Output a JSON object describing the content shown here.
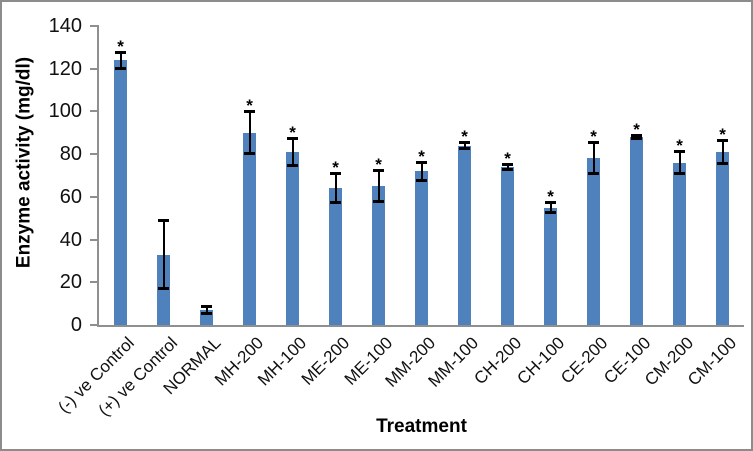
{
  "window": {
    "background": "#ffffff",
    "border_color": "#8c8c8c"
  },
  "chart_data": {
    "type": "bar",
    "title": "",
    "xlabel": "Treatment",
    "ylabel": "Enzyme activity (mg/dl)",
    "ylim": [
      0,
      140
    ],
    "yticks": [
      0,
      20,
      40,
      60,
      80,
      100,
      120,
      140
    ],
    "grid": false,
    "legend": false,
    "bar_color": "#4F81BD",
    "error_bar_color": "#000000",
    "axis_line_color": "#8f8f8f",
    "significance_marker": "*",
    "categories": [
      "(-) ve Control",
      "(+) ve Control",
      "NORMAL",
      "MH-200",
      "MH-100",
      "ME-200",
      "ME-100",
      "MM-200",
      "MM-100",
      "CH-200",
      "CH-100",
      "CE-200",
      "CE-100",
      "CM-200",
      "CM-100"
    ],
    "values": [
      124,
      33,
      7,
      90,
      81,
      64,
      65,
      72,
      84,
      74,
      55,
      78,
      88,
      76,
      81
    ],
    "errors": [
      4,
      16,
      2,
      10,
      6.5,
      7,
      7.5,
      4.5,
      1.5,
      1.5,
      2.5,
      7.5,
      1,
      5.5,
      5.5
    ],
    "significant": [
      true,
      false,
      false,
      true,
      true,
      true,
      true,
      true,
      true,
      true,
      true,
      true,
      true,
      true,
      true
    ]
  }
}
